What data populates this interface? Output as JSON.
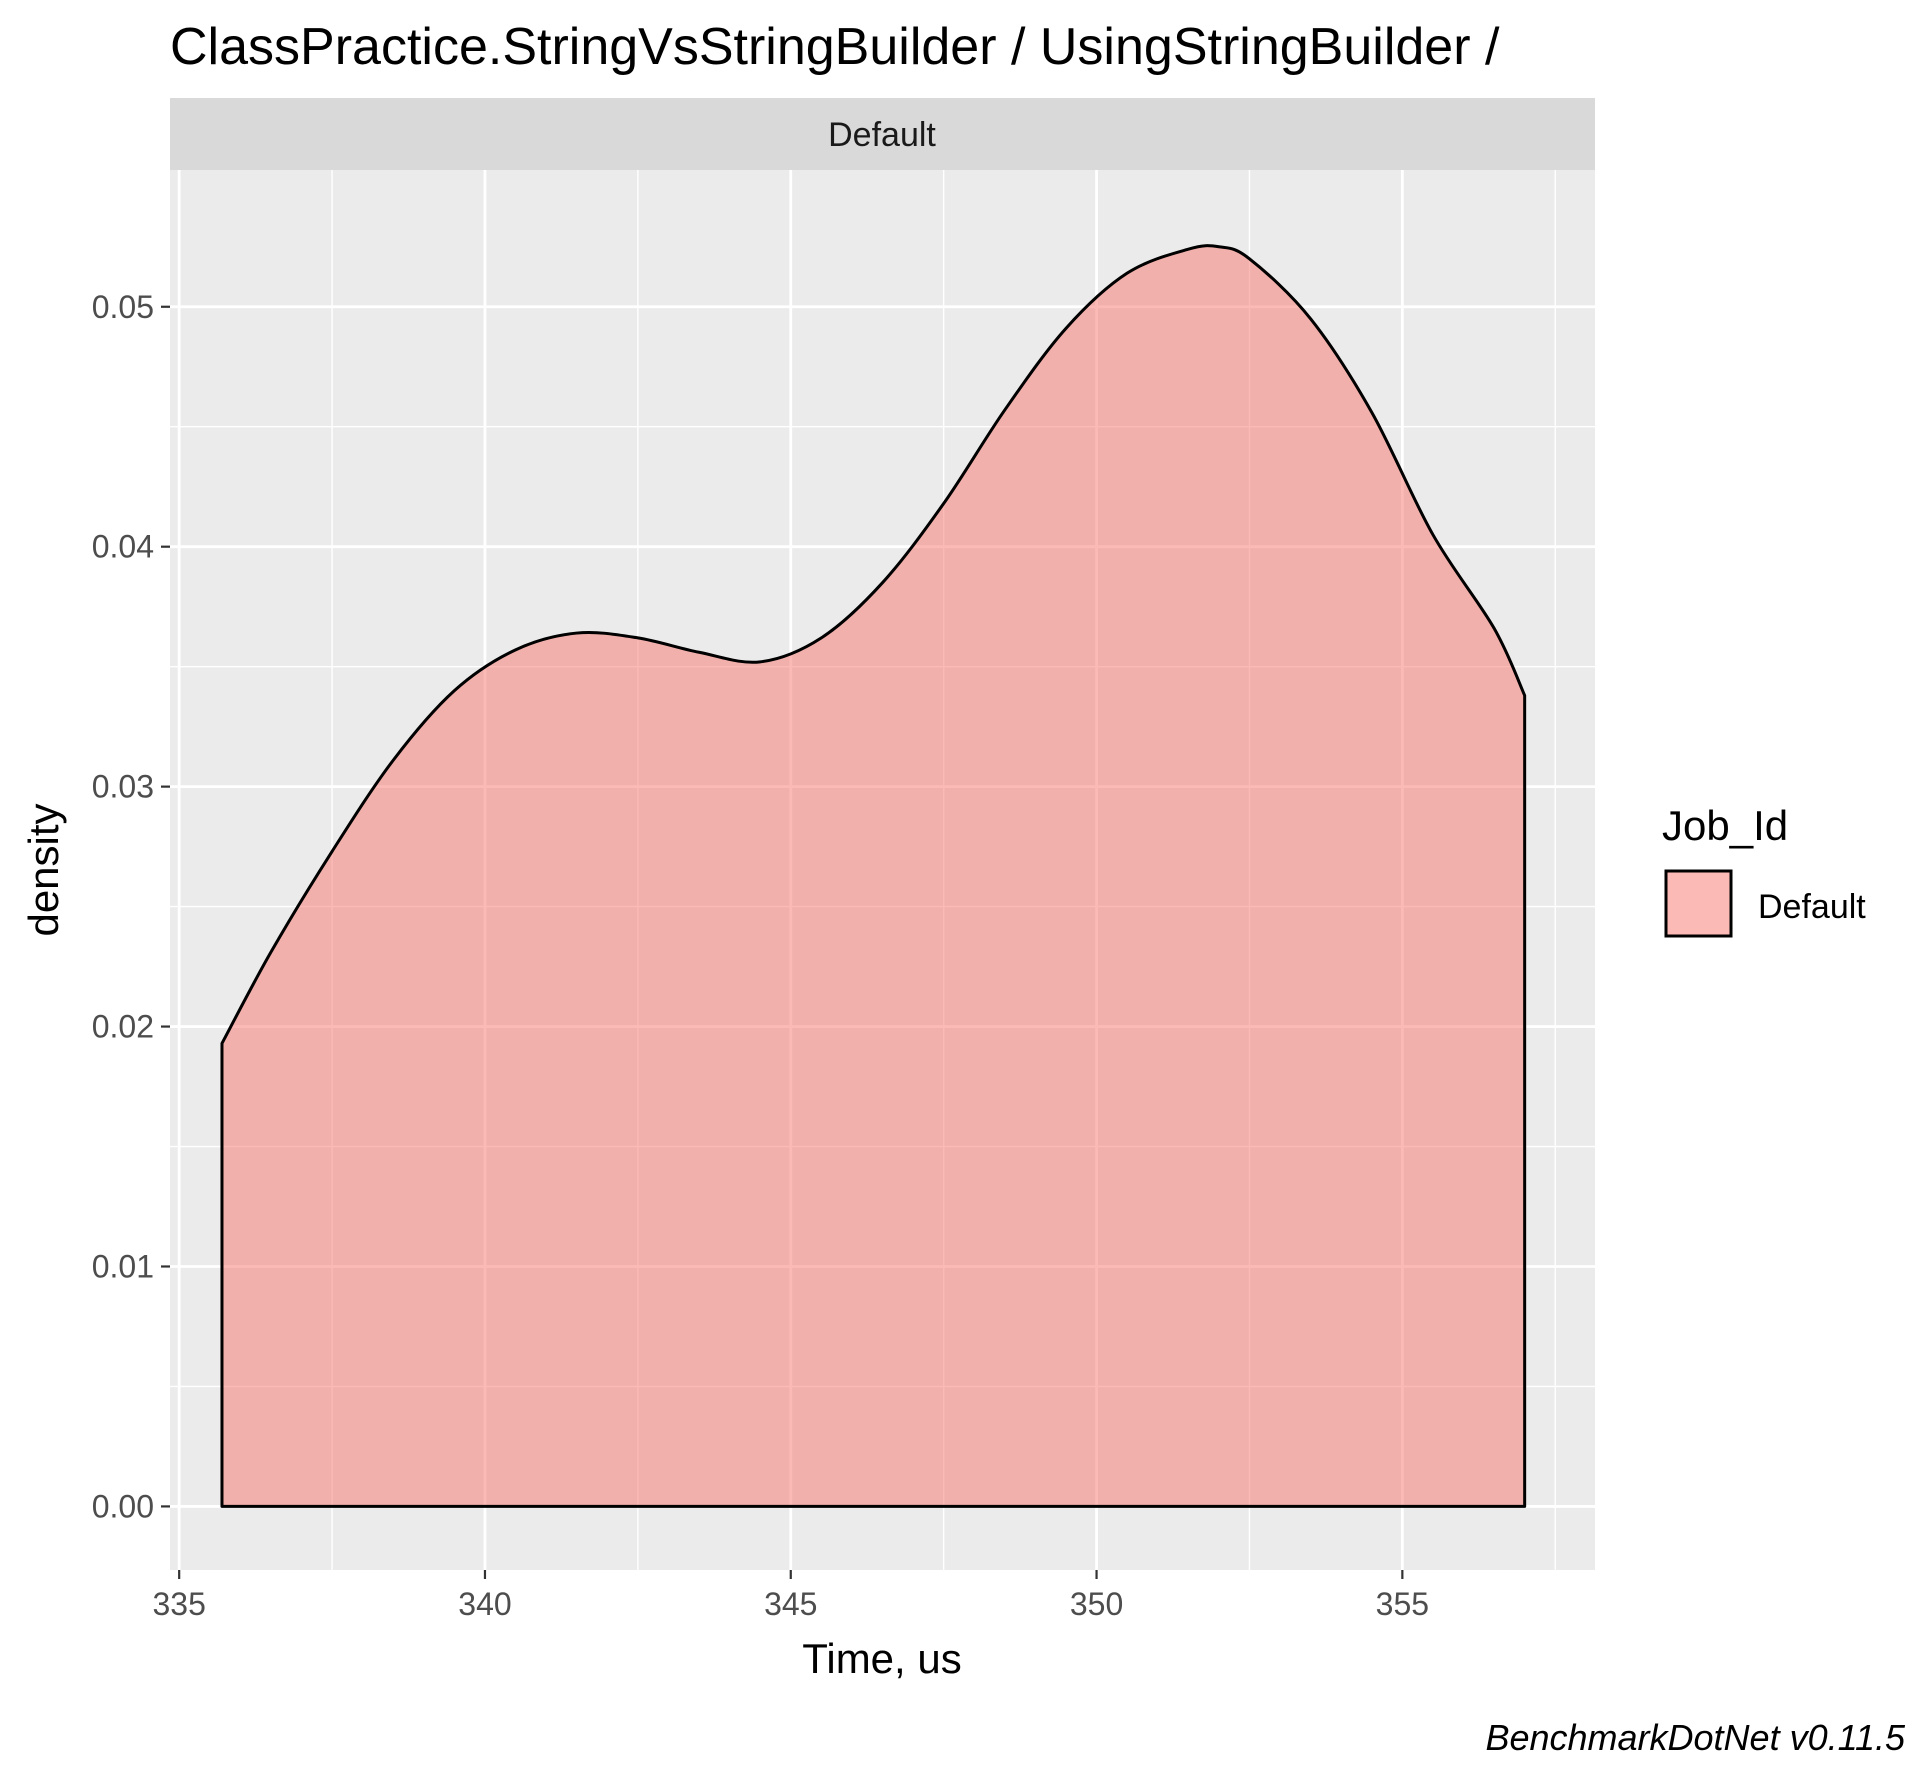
{
  "chart_data": {
    "type": "area",
    "title": "ClassPractice.StringVsStringBuilder / UsingStringBuilder /",
    "facet_label": "Default",
    "xlabel": "Time, us",
    "ylabel": "density",
    "xlim": [
      334.85,
      358.15
    ],
    "ylim": [
      -0.00265,
      0.0557
    ],
    "x_ticks": [
      335,
      340,
      345,
      350,
      355
    ],
    "x_tick_labels": [
      "335",
      "340",
      "345",
      "350",
      "355"
    ],
    "y_ticks": [
      0.0,
      0.01,
      0.02,
      0.03,
      0.04,
      0.05
    ],
    "y_tick_labels": [
      "0.00",
      "0.01",
      "0.02",
      "0.03",
      "0.04",
      "0.05"
    ],
    "grid": true,
    "legend": {
      "title": "Job_Id",
      "position": "right"
    },
    "series": [
      {
        "name": "Default",
        "color": "#f8766d",
        "x": [
          335.7,
          336.5,
          337.5,
          338.5,
          339.5,
          340.5,
          341.5,
          342.5,
          343.5,
          344.5,
          345.5,
          346.5,
          347.5,
          348.5,
          349.5,
          350.5,
          351.5,
          352.0,
          352.5,
          353.5,
          354.5,
          355.5,
          356.5,
          357.0
        ],
        "y": [
          0.0193,
          0.0231,
          0.0273,
          0.0311,
          0.034,
          0.0357,
          0.0364,
          0.0362,
          0.0356,
          0.0352,
          0.0362,
          0.0385,
          0.0418,
          0.0457,
          0.0491,
          0.0514,
          0.0524,
          0.0525,
          0.052,
          0.0495,
          0.0456,
          0.0405,
          0.0366,
          0.0338
        ]
      }
    ]
  },
  "caption": "BenchmarkDotNet v0.11.5"
}
